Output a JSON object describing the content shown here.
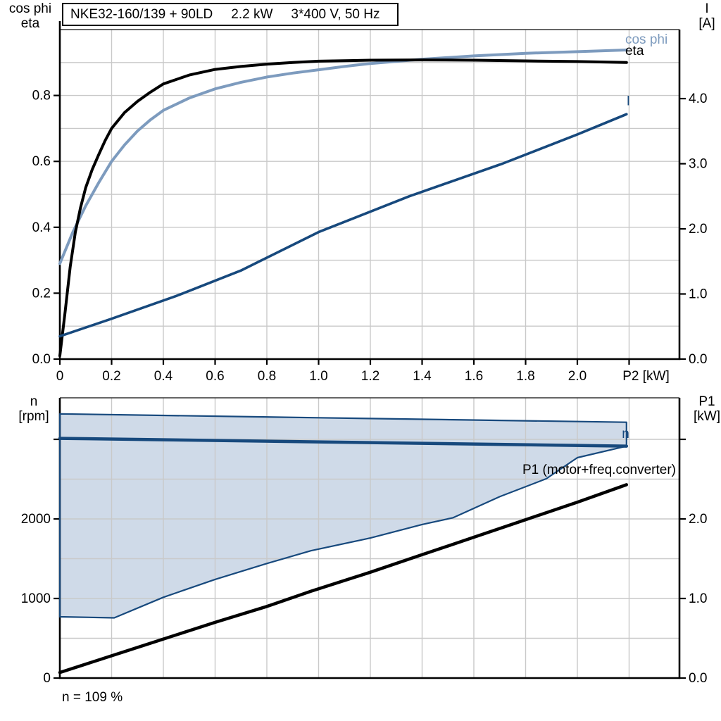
{
  "title_box": {
    "segments": [
      "NKE32-160/139 + 90LD",
      "2.2 kW",
      "3*400 V, 50 Hz"
    ]
  },
  "axis_corner_labels": {
    "top_left": [
      "cos phi",
      "eta"
    ],
    "top_right": [
      "I",
      "[A]"
    ],
    "bottom_left": [
      "n",
      "[rpm]"
    ],
    "bottom_right": [
      "P1",
      "[kW]"
    ]
  },
  "note": "n = 109 %",
  "colors": {
    "cos_phi": "#7D9BBE",
    "eta": "#000000",
    "current": "#17497D",
    "speed_fill": "#CFDAE8",
    "grid": "#C9C9C9",
    "axis": "#000000"
  },
  "chart_data": [
    {
      "id": "top-chart",
      "type": "line",
      "x_axis": {
        "label": "P2 [kW]",
        "min": 0,
        "max": 2.3946,
        "gridlines": [
          0.2,
          0.4,
          0.6,
          0.8,
          1.0,
          1.2,
          1.4,
          1.6,
          1.8,
          2.0,
          2.2
        ],
        "ticks": [
          {
            "v": 0,
            "label": "0"
          },
          {
            "v": 0.2,
            "label": "0.2"
          },
          {
            "v": 0.4,
            "label": "0.4"
          },
          {
            "v": 0.6,
            "label": "0.6"
          },
          {
            "v": 0.8,
            "label": "0.8"
          },
          {
            "v": 1.0,
            "label": "1.0"
          },
          {
            "v": 1.2,
            "label": "1.2"
          },
          {
            "v": 1.4,
            "label": "1.4"
          },
          {
            "v": 1.6,
            "label": "1.6"
          },
          {
            "v": 1.8,
            "label": "1.8"
          },
          {
            "v": 2.0,
            "label": "2.0"
          },
          {
            "v": 2.2,
            "label": "P2 [kW]",
            "dx": 24
          }
        ]
      },
      "y_left": {
        "label": "cos phi / eta",
        "min": 0,
        "max": 1.0,
        "gridlines": [
          0.1,
          0.2,
          0.3,
          0.4,
          0.5,
          0.6,
          0.7,
          0.8,
          0.9
        ],
        "ticks": [
          {
            "v": 0,
            "label": "0.0"
          },
          {
            "v": 0.2,
            "label": "0.2"
          },
          {
            "v": 0.4,
            "label": "0.4"
          },
          {
            "v": 0.6,
            "label": "0.6"
          },
          {
            "v": 0.8,
            "label": "0.8"
          }
        ]
      },
      "y_right": {
        "label": "I [A]",
        "min": 0,
        "max": 5.06,
        "ticks": [
          {
            "v": 0,
            "label": "0.0"
          },
          {
            "v": 1,
            "label": "1.0"
          },
          {
            "v": 2,
            "label": "2.0"
          },
          {
            "v": 3,
            "label": "3.0"
          },
          {
            "v": 4,
            "label": "4.0"
          }
        ]
      },
      "series": [
        {
          "name": "cos phi",
          "axis": "left",
          "color": "#7D9BBE",
          "width": 4,
          "points": [
            [
              0,
              0.29
            ],
            [
              0.05,
              0.385
            ],
            [
              0.1,
              0.465
            ],
            [
              0.15,
              0.535
            ],
            [
              0.2,
              0.6
            ],
            [
              0.25,
              0.65
            ],
            [
              0.3,
              0.692
            ],
            [
              0.35,
              0.726
            ],
            [
              0.4,
              0.755
            ],
            [
              0.5,
              0.792
            ],
            [
              0.6,
              0.82
            ],
            [
              0.7,
              0.84
            ],
            [
              0.8,
              0.856
            ],
            [
              0.9,
              0.868
            ],
            [
              1.0,
              0.878
            ],
            [
              1.1,
              0.888
            ],
            [
              1.2,
              0.897
            ],
            [
              1.4,
              0.91
            ],
            [
              1.6,
              0.92
            ],
            [
              1.8,
              0.928
            ],
            [
              2.0,
              0.933
            ],
            [
              2.19,
              0.938
            ]
          ]
        },
        {
          "name": "eta",
          "axis": "left",
          "color": "#000000",
          "width": 4,
          "points": [
            [
              0,
              0.01
            ],
            [
              0.02,
              0.14
            ],
            [
              0.04,
              0.28
            ],
            [
              0.06,
              0.385
            ],
            [
              0.08,
              0.46
            ],
            [
              0.1,
              0.52
            ],
            [
              0.125,
              0.575
            ],
            [
              0.15,
              0.62
            ],
            [
              0.175,
              0.663
            ],
            [
              0.2,
              0.7
            ],
            [
              0.25,
              0.748
            ],
            [
              0.3,
              0.782
            ],
            [
              0.35,
              0.81
            ],
            [
              0.4,
              0.835
            ],
            [
              0.5,
              0.862
            ],
            [
              0.6,
              0.879
            ],
            [
              0.7,
              0.888
            ],
            [
              0.8,
              0.895
            ],
            [
              0.9,
              0.9
            ],
            [
              1.0,
              0.904
            ],
            [
              1.2,
              0.907
            ],
            [
              1.4,
              0.908
            ],
            [
              1.6,
              0.907
            ],
            [
              1.8,
              0.905
            ],
            [
              2.0,
              0.903
            ],
            [
              2.19,
              0.9
            ]
          ]
        },
        {
          "name": "I",
          "axis": "right",
          "color": "#17497D",
          "width": 3.6,
          "points": [
            [
              0,
              0.35
            ],
            [
              0.2,
              0.62
            ],
            [
              0.45,
              0.97
            ],
            [
              0.7,
              1.36
            ],
            [
              1.0,
              1.95
            ],
            [
              1.35,
              2.5
            ],
            [
              1.71,
              3.0
            ],
            [
              2.0,
              3.45
            ],
            [
              2.19,
              3.76
            ]
          ]
        }
      ],
      "labels": [
        {
          "text": "cos phi",
          "x": 2.185,
          "v": 0.957,
          "axis": "left",
          "color": "#7D9BBE",
          "anchor": "start",
          "size": 19
        },
        {
          "text": "eta",
          "x": 2.185,
          "v": 0.923,
          "axis": "left",
          "color": "#000000",
          "anchor": "start",
          "size": 19
        },
        {
          "text": "I",
          "x": 2.19,
          "v": 3.9,
          "axis": "right",
          "color": "#17497D",
          "anchor": "start",
          "size": 19
        }
      ]
    },
    {
      "id": "bottom-chart",
      "type": "line",
      "x_axis": {
        "label": "",
        "min": 0,
        "max": 2.3946,
        "gridlines": [
          0.2,
          0.4,
          0.6,
          0.8,
          1.0,
          1.2,
          1.4,
          1.6,
          1.8,
          2.0,
          2.2
        ],
        "ticks": []
      },
      "y_left": {
        "label": "n [rpm]",
        "min": 0,
        "max": 3522,
        "gridlines": [
          500,
          1000,
          1500,
          2000,
          2500,
          3000
        ],
        "ticks": [
          {
            "v": 0,
            "label": "0"
          },
          {
            "v": 1000,
            "label": "1000"
          },
          {
            "v": 2000,
            "label": "2000"
          },
          {
            "v": 3000,
            "label": ""
          }
        ]
      },
      "y_right": {
        "label": "P1 [kW]",
        "min": 0,
        "max": 3.522,
        "ticks": [
          {
            "v": 0,
            "label": "0.0"
          },
          {
            "v": 1,
            "label": "1.0"
          },
          {
            "v": 2,
            "label": "2.0"
          },
          {
            "v": 3,
            "label": ""
          }
        ]
      },
      "series": [
        {
          "name": "speed range",
          "axis": "left",
          "color": "#17497D",
          "width": 2.2,
          "fill": "#CFDAE8",
          "closed": true,
          "points": [
            [
              0,
              3320
            ],
            [
              1.0,
              3272
            ],
            [
              2.19,
              3215
            ],
            [
              2.19,
              2915
            ],
            [
              2.0,
              2770
            ],
            [
              1.88,
              2505
            ],
            [
              1.7,
              2280
            ],
            [
              1.52,
              2015
            ],
            [
              1.4,
              1930
            ],
            [
              1.2,
              1760
            ],
            [
              0.97,
              1600
            ],
            [
              0.8,
              1440
            ],
            [
              0.6,
              1240
            ],
            [
              0.4,
              1015
            ],
            [
              0.21,
              757
            ],
            [
              0,
              770
            ]
          ]
        },
        {
          "name": "n",
          "axis": "left",
          "color": "#17497D",
          "width": 4.5,
          "points": [
            [
              0,
              3012
            ],
            [
              1.0,
              2968
            ],
            [
              2.19,
              2915
            ]
          ]
        },
        {
          "name": "P1 motor freq converter",
          "axis": "right",
          "color": "#000000",
          "width": 4.5,
          "points": [
            [
              0,
              0.07
            ],
            [
              0.2,
              0.28
            ],
            [
              0.4,
              0.49
            ],
            [
              0.6,
              0.7
            ],
            [
              0.8,
              0.9
            ],
            [
              0.97,
              1.09
            ],
            [
              1.2,
              1.33
            ],
            [
              1.4,
              1.55
            ],
            [
              1.6,
              1.77
            ],
            [
              1.8,
              1.99
            ],
            [
              2.0,
              2.21
            ],
            [
              2.19,
              2.43
            ]
          ]
        }
      ],
      "labels": [
        {
          "text": "n",
          "x": 2.172,
          "v": 3018,
          "axis": "left",
          "color": "#17497D",
          "anchor": "start",
          "size": 19
        },
        {
          "text": "P1 (motor+freq.converter)",
          "x": 2.381,
          "v": 2566,
          "axis": "left",
          "color": "#000000",
          "anchor": "end",
          "size": 19
        }
      ]
    }
  ]
}
